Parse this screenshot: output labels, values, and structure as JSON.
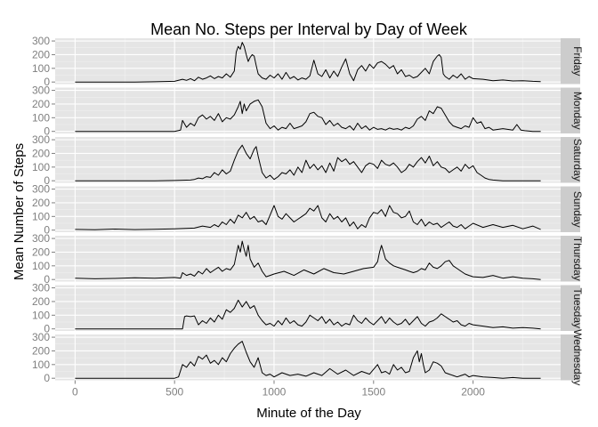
{
  "chart_data": {
    "type": "line",
    "title": "Mean No. Steps per Interval by Day of Week",
    "xlabel": "Minute of the Day",
    "ylabel": "Mean Number of Steps",
    "xlim": [
      -100,
      2440
    ],
    "ylim": [
      -15,
      320
    ],
    "x_ticks": [
      0,
      500,
      1000,
      1500,
      2000
    ],
    "y_ticks": [
      0,
      100,
      200,
      300
    ],
    "grid": true,
    "facet_by": "day of week",
    "series": [
      {
        "name": "Friday",
        "x": [
          0,
          100,
          200,
          300,
          400,
          500,
          540,
          560,
          580,
          600,
          620,
          640,
          660,
          680,
          700,
          720,
          740,
          760,
          780,
          800,
          810,
          820,
          830,
          840,
          850,
          860,
          870,
          880,
          890,
          900,
          910,
          920,
          940,
          960,
          980,
          1000,
          1020,
          1040,
          1060,
          1080,
          1100,
          1120,
          1140,
          1160,
          1180,
          1200,
          1220,
          1240,
          1260,
          1280,
          1300,
          1320,
          1340,
          1360,
          1380,
          1400,
          1420,
          1440,
          1460,
          1480,
          1500,
          1520,
          1540,
          1560,
          1580,
          1600,
          1620,
          1640,
          1660,
          1680,
          1700,
          1720,
          1740,
          1760,
          1780,
          1800,
          1820,
          1830,
          1840,
          1850,
          1860,
          1880,
          1900,
          1920,
          1940,
          1960,
          1980,
          2000,
          2050,
          2100,
          2150,
          2200,
          2250,
          2300,
          2340
        ],
        "values": [
          0,
          0,
          0,
          0,
          2,
          5,
          20,
          12,
          25,
          10,
          35,
          20,
          30,
          45,
          25,
          40,
          30,
          60,
          35,
          80,
          220,
          260,
          240,
          290,
          260,
          200,
          150,
          180,
          200,
          190,
          120,
          60,
          30,
          20,
          50,
          30,
          60,
          20,
          70,
          25,
          40,
          15,
          30,
          20,
          45,
          160,
          60,
          40,
          90,
          30,
          80,
          40,
          110,
          170,
          60,
          10,
          90,
          120,
          80,
          130,
          100,
          140,
          150,
          130,
          100,
          120,
          60,
          90,
          40,
          50,
          30,
          40,
          70,
          100,
          60,
          150,
          190,
          200,
          180,
          60,
          40,
          20,
          50,
          30,
          60,
          20,
          40,
          25,
          20,
          10,
          15,
          8,
          10,
          5,
          3
        ]
      },
      {
        "name": "Monday",
        "x": [
          0,
          100,
          200,
          300,
          400,
          500,
          530,
          540,
          560,
          580,
          600,
          620,
          640,
          660,
          680,
          700,
          720,
          740,
          760,
          780,
          800,
          820,
          830,
          840,
          850,
          860,
          880,
          900,
          920,
          940,
          960,
          980,
          1000,
          1020,
          1040,
          1060,
          1080,
          1100,
          1120,
          1140,
          1160,
          1180,
          1200,
          1220,
          1240,
          1260,
          1280,
          1300,
          1320,
          1340,
          1360,
          1380,
          1400,
          1420,
          1440,
          1460,
          1480,
          1500,
          1520,
          1540,
          1560,
          1580,
          1600,
          1620,
          1640,
          1660,
          1680,
          1700,
          1720,
          1740,
          1760,
          1780,
          1800,
          1820,
          1840,
          1860,
          1880,
          1900,
          1920,
          1940,
          1960,
          1980,
          2000,
          2020,
          2040,
          2060,
          2080,
          2100,
          2150,
          2200,
          2220,
          2240,
          2260,
          2300,
          2340
        ],
        "values": [
          0,
          0,
          0,
          0,
          0,
          0,
          10,
          80,
          30,
          60,
          40,
          100,
          120,
          90,
          110,
          80,
          130,
          70,
          100,
          90,
          120,
          180,
          220,
          130,
          200,
          150,
          200,
          220,
          230,
          180,
          60,
          20,
          40,
          10,
          30,
          20,
          60,
          20,
          30,
          40,
          70,
          130,
          140,
          110,
          100,
          50,
          80,
          40,
          60,
          30,
          20,
          40,
          10,
          60,
          20,
          40,
          10,
          30,
          15,
          20,
          10,
          25,
          15,
          20,
          10,
          30,
          20,
          40,
          90,
          110,
          80,
          150,
          130,
          180,
          170,
          120,
          70,
          40,
          30,
          20,
          40,
          30,
          100,
          60,
          70,
          20,
          30,
          10,
          20,
          10,
          50,
          10,
          5,
          0,
          0
        ]
      },
      {
        "name": "Saturday",
        "x": [
          0,
          100,
          200,
          300,
          400,
          500,
          580,
          600,
          620,
          640,
          660,
          680,
          700,
          720,
          740,
          760,
          780,
          800,
          820,
          840,
          860,
          880,
          900,
          910,
          920,
          930,
          940,
          960,
          980,
          1000,
          1020,
          1040,
          1060,
          1080,
          1100,
          1120,
          1140,
          1160,
          1180,
          1200,
          1220,
          1240,
          1260,
          1280,
          1300,
          1320,
          1340,
          1360,
          1380,
          1400,
          1420,
          1440,
          1460,
          1480,
          1500,
          1520,
          1540,
          1560,
          1580,
          1600,
          1620,
          1640,
          1660,
          1680,
          1700,
          1720,
          1740,
          1760,
          1780,
          1800,
          1820,
          1840,
          1860,
          1880,
          1900,
          1920,
          1940,
          1960,
          1980,
          2000,
          2020,
          2040,
          2060,
          2080,
          2100,
          2150,
          2200,
          2250,
          2300,
          2340
        ],
        "values": [
          0,
          0,
          0,
          0,
          0,
          2,
          5,
          10,
          20,
          15,
          30,
          25,
          60,
          40,
          80,
          50,
          70,
          150,
          220,
          260,
          200,
          160,
          230,
          250,
          180,
          120,
          60,
          20,
          40,
          10,
          30,
          60,
          50,
          80,
          40,
          100,
          60,
          150,
          90,
          120,
          80,
          110,
          60,
          130,
          70,
          170,
          140,
          160,
          120,
          140,
          100,
          60,
          110,
          130,
          120,
          90,
          150,
          120,
          110,
          130,
          100,
          60,
          80,
          120,
          100,
          140,
          170,
          130,
          180,
          110,
          140,
          100,
          90,
          60,
          80,
          100,
          70,
          120,
          90,
          110,
          60,
          40,
          20,
          10,
          5,
          0,
          0,
          0,
          0,
          0
        ]
      },
      {
        "name": "Sunday",
        "x": [
          0,
          100,
          200,
          300,
          400,
          500,
          600,
          640,
          680,
          700,
          720,
          740,
          760,
          780,
          800,
          820,
          840,
          860,
          880,
          900,
          920,
          940,
          960,
          980,
          1000,
          1020,
          1040,
          1060,
          1080,
          1100,
          1120,
          1140,
          1160,
          1180,
          1200,
          1220,
          1240,
          1260,
          1280,
          1300,
          1320,
          1340,
          1360,
          1380,
          1400,
          1420,
          1440,
          1460,
          1480,
          1500,
          1520,
          1540,
          1560,
          1580,
          1600,
          1620,
          1640,
          1660,
          1680,
          1700,
          1720,
          1740,
          1760,
          1780,
          1800,
          1820,
          1840,
          1860,
          1880,
          1900,
          1920,
          1940,
          1960,
          1980,
          2000,
          2050,
          2100,
          2150,
          2200,
          2250,
          2300,
          2340
        ],
        "values": [
          5,
          3,
          8,
          4,
          6,
          10,
          15,
          30,
          20,
          40,
          25,
          60,
          40,
          80,
          50,
          110,
          90,
          130,
          80,
          100,
          60,
          70,
          40,
          110,
          180,
          100,
          80,
          120,
          90,
          60,
          80,
          100,
          120,
          160,
          140,
          180,
          90,
          60,
          120,
          80,
          100,
          60,
          90,
          30,
          60,
          10,
          40,
          20,
          90,
          130,
          120,
          150,
          100,
          180,
          130,
          120,
          90,
          100,
          140,
          60,
          40,
          80,
          30,
          60,
          40,
          50,
          20,
          40,
          60,
          30,
          20,
          40,
          10,
          30,
          50,
          20,
          40,
          20,
          35,
          10,
          30,
          5
        ]
      },
      {
        "name": "Thursday",
        "x": [
          0,
          100,
          200,
          300,
          400,
          500,
          530,
          540,
          560,
          580,
          600,
          620,
          640,
          660,
          680,
          700,
          720,
          740,
          760,
          780,
          800,
          820,
          830,
          840,
          850,
          860,
          870,
          880,
          900,
          920,
          940,
          960,
          980,
          1000,
          1050,
          1100,
          1150,
          1200,
          1250,
          1300,
          1350,
          1400,
          1450,
          1500,
          1520,
          1530,
          1540,
          1550,
          1560,
          1580,
          1600,
          1620,
          1640,
          1660,
          1680,
          1700,
          1720,
          1740,
          1760,
          1780,
          1800,
          1820,
          1840,
          1860,
          1880,
          1900,
          1920,
          1940,
          1960,
          1980,
          2000,
          2050,
          2100,
          2150,
          2200,
          2250,
          2300,
          2340
        ],
        "values": [
          10,
          5,
          8,
          12,
          10,
          15,
          10,
          50,
          30,
          40,
          25,
          60,
          40,
          80,
          50,
          70,
          90,
          60,
          80,
          70,
          110,
          250,
          200,
          280,
          220,
          170,
          250,
          150,
          90,
          120,
          60,
          20,
          30,
          40,
          60,
          30,
          70,
          40,
          80,
          50,
          40,
          60,
          80,
          90,
          130,
          200,
          250,
          200,
          150,
          120,
          100,
          90,
          80,
          70,
          60,
          50,
          60,
          80,
          70,
          120,
          90,
          80,
          100,
          130,
          140,
          100,
          80,
          60,
          40,
          30,
          20,
          15,
          30,
          10,
          20,
          10,
          5,
          0
        ]
      },
      {
        "name": "Tuesday",
        "x": [
          0,
          100,
          200,
          300,
          400,
          500,
          540,
          550,
          560,
          580,
          600,
          620,
          640,
          660,
          680,
          700,
          720,
          740,
          760,
          780,
          800,
          820,
          840,
          860,
          880,
          900,
          920,
          940,
          960,
          980,
          1000,
          1020,
          1040,
          1060,
          1080,
          1100,
          1120,
          1140,
          1160,
          1180,
          1200,
          1220,
          1240,
          1260,
          1280,
          1300,
          1320,
          1340,
          1360,
          1380,
          1400,
          1420,
          1440,
          1460,
          1480,
          1500,
          1520,
          1540,
          1560,
          1580,
          1600,
          1620,
          1640,
          1660,
          1680,
          1700,
          1720,
          1740,
          1760,
          1780,
          1800,
          1820,
          1840,
          1860,
          1880,
          1900,
          1920,
          1940,
          1960,
          1980,
          2000,
          2050,
          2100,
          2150,
          2200,
          2250,
          2300,
          2340
        ],
        "values": [
          0,
          0,
          0,
          0,
          0,
          0,
          0,
          90,
          95,
          90,
          95,
          30,
          60,
          40,
          80,
          50,
          100,
          70,
          140,
          120,
          150,
          210,
          160,
          200,
          150,
          170,
          100,
          60,
          30,
          40,
          20,
          60,
          30,
          80,
          40,
          60,
          30,
          20,
          50,
          100,
          80,
          60,
          90,
          40,
          70,
          30,
          50,
          20,
          40,
          30,
          100,
          60,
          40,
          80,
          50,
          30,
          60,
          90,
          40,
          80,
          50,
          30,
          40,
          70,
          30,
          60,
          90,
          40,
          20,
          50,
          60,
          80,
          110,
          90,
          70,
          50,
          60,
          30,
          20,
          40,
          30,
          20,
          10,
          15,
          5,
          10,
          5,
          0
        ]
      },
      {
        "name": "Wednesday",
        "x": [
          0,
          100,
          200,
          300,
          400,
          500,
          520,
          540,
          560,
          580,
          600,
          620,
          640,
          660,
          680,
          700,
          720,
          740,
          760,
          780,
          800,
          820,
          840,
          860,
          880,
          900,
          920,
          940,
          960,
          980,
          1000,
          1040,
          1080,
          1120,
          1160,
          1200,
          1240,
          1280,
          1320,
          1360,
          1400,
          1440,
          1480,
          1520,
          1540,
          1560,
          1580,
          1600,
          1620,
          1640,
          1660,
          1680,
          1700,
          1720,
          1730,
          1740,
          1750,
          1760,
          1780,
          1800,
          1820,
          1840,
          1860,
          1880,
          1900,
          1920,
          1940,
          1960,
          1980,
          2000,
          2050,
          2100,
          2150,
          2200,
          2250,
          2300,
          2340
        ],
        "values": [
          0,
          0,
          0,
          0,
          0,
          0,
          10,
          100,
          80,
          120,
          90,
          160,
          140,
          170,
          110,
          130,
          100,
          150,
          120,
          180,
          220,
          250,
          270,
          190,
          120,
          80,
          150,
          40,
          20,
          30,
          10,
          40,
          20,
          30,
          15,
          40,
          20,
          70,
          30,
          60,
          20,
          50,
          30,
          100,
          40,
          50,
          30,
          100,
          60,
          80,
          40,
          50,
          150,
          200,
          120,
          180,
          100,
          40,
          60,
          120,
          110,
          90,
          40,
          30,
          20,
          10,
          20,
          30,
          10,
          20,
          10,
          5,
          0,
          5,
          0,
          0,
          0
        ]
      }
    ]
  }
}
